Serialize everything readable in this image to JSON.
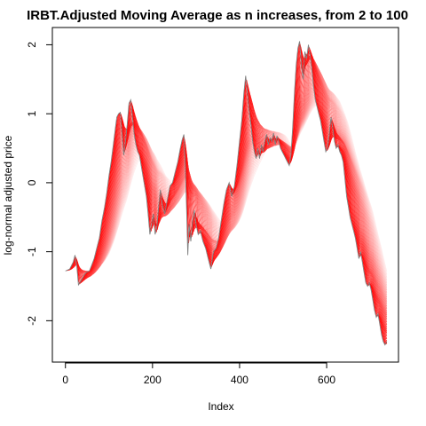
{
  "chart_data": {
    "type": "line",
    "title": "IRBT.Adjusted Moving Average as n increases, from 2 to 100",
    "xlabel": "Index",
    "ylabel": "log-normal adjusted price",
    "xlim": [
      -30,
      765
    ],
    "ylim": [
      -2.6,
      2.25
    ],
    "x_ticks": [
      0,
      200,
      400,
      600
    ],
    "y_ticks": [
      -2,
      -1,
      0,
      1,
      2
    ],
    "grid": false,
    "legend": "none",
    "ma_window_min": 2,
    "ma_window_max": 100,
    "series": [
      {
        "role": "price",
        "color": "#808080",
        "points": [
          [
            0,
            -1.28
          ],
          [
            10,
            -1.25
          ],
          [
            18,
            -1.15
          ],
          [
            22,
            -1.05
          ],
          [
            26,
            -1.2
          ],
          [
            30,
            -1.48
          ],
          [
            36,
            -1.42
          ],
          [
            42,
            -1.35
          ],
          [
            48,
            -1.3
          ],
          [
            55,
            -1.28
          ],
          [
            60,
            -1.2
          ],
          [
            66,
            -1.1
          ],
          [
            72,
            -0.95
          ],
          [
            78,
            -0.8
          ],
          [
            84,
            -0.55
          ],
          [
            90,
            -0.35
          ],
          [
            95,
            -0.15
          ],
          [
            100,
            0.1
          ],
          [
            105,
            0.3
          ],
          [
            110,
            0.55
          ],
          [
            115,
            0.8
          ],
          [
            118,
            0.95
          ],
          [
            122,
            1.0
          ],
          [
            126,
            1.02
          ],
          [
            130,
            0.7
          ],
          [
            134,
            0.4
          ],
          [
            138,
            0.6
          ],
          [
            142,
            0.85
          ],
          [
            146,
            1.15
          ],
          [
            150,
            1.2
          ],
          [
            154,
            0.95
          ],
          [
            158,
            0.7
          ],
          [
            162,
            0.55
          ],
          [
            166,
            0.45
          ],
          [
            170,
            0.4
          ],
          [
            174,
            0.25
          ],
          [
            178,
            0.1
          ],
          [
            182,
            -0.05
          ],
          [
            186,
            -0.2
          ],
          [
            190,
            -0.45
          ],
          [
            194,
            -0.75
          ],
          [
            198,
            -0.6
          ],
          [
            202,
            -0.45
          ],
          [
            206,
            -0.75
          ],
          [
            210,
            -0.65
          ],
          [
            214,
            -0.35
          ],
          [
            218,
            -0.1
          ],
          [
            222,
            -0.3
          ],
          [
            228,
            -0.45
          ],
          [
            234,
            -0.25
          ],
          [
            240,
            -0.05
          ],
          [
            246,
            0.0
          ],
          [
            252,
            0.15
          ],
          [
            258,
            0.3
          ],
          [
            264,
            0.5
          ],
          [
            268,
            0.62
          ],
          [
            272,
            0.7
          ],
          [
            275,
            0.3
          ],
          [
            278,
            -0.3
          ],
          [
            281,
            -1.05
          ],
          [
            284,
            -0.6
          ],
          [
            288,
            -0.85
          ],
          [
            292,
            -0.55
          ],
          [
            296,
            -0.4
          ],
          [
            300,
            -0.6
          ],
          [
            305,
            -0.75
          ],
          [
            310,
            -0.7
          ],
          [
            316,
            -0.85
          ],
          [
            322,
            -0.95
          ],
          [
            328,
            -1.1
          ],
          [
            334,
            -1.25
          ],
          [
            340,
            -1.0
          ],
          [
            346,
            -0.95
          ],
          [
            352,
            -0.8
          ],
          [
            358,
            -0.55
          ],
          [
            364,
            -0.3
          ],
          [
            370,
            -0.1
          ],
          [
            376,
            0.0
          ],
          [
            382,
            -0.2
          ],
          [
            388,
            -0.05
          ],
          [
            394,
            0.25
          ],
          [
            400,
            0.6
          ],
          [
            405,
            0.9
          ],
          [
            410,
            1.3
          ],
          [
            414,
            1.55
          ],
          [
            418,
            1.3
          ],
          [
            422,
            1.05
          ],
          [
            426,
            0.85
          ],
          [
            430,
            0.6
          ],
          [
            434,
            0.45
          ],
          [
            438,
            0.35
          ],
          [
            442,
            0.5
          ],
          [
            446,
            0.35
          ],
          [
            450,
            0.55
          ],
          [
            454,
            0.45
          ],
          [
            458,
            0.6
          ],
          [
            462,
            0.7
          ],
          [
            466,
            0.55
          ],
          [
            470,
            0.65
          ],
          [
            474,
            0.6
          ],
          [
            478,
            0.72
          ],
          [
            482,
            0.55
          ],
          [
            486,
            0.68
          ],
          [
            490,
            0.6
          ],
          [
            494,
            0.5
          ],
          [
            498,
            0.45
          ],
          [
            502,
            0.4
          ],
          [
            506,
            0.35
          ],
          [
            510,
            0.3
          ],
          [
            514,
            0.25
          ],
          [
            518,
            0.4
          ],
          [
            522,
            0.8
          ],
          [
            526,
            1.3
          ],
          [
            530,
            1.7
          ],
          [
            534,
            1.95
          ],
          [
            538,
            2.05
          ],
          [
            542,
            1.7
          ],
          [
            546,
            1.5
          ],
          [
            550,
            1.9
          ],
          [
            554,
            1.8
          ],
          [
            558,
            2.0
          ],
          [
            562,
            1.85
          ],
          [
            566,
            1.65
          ],
          [
            570,
            1.4
          ],
          [
            574,
            1.2
          ],
          [
            578,
            1.1
          ],
          [
            582,
            1.0
          ],
          [
            586,
            0.9
          ],
          [
            590,
            0.75
          ],
          [
            594,
            0.6
          ],
          [
            598,
            0.45
          ],
          [
            602,
            0.5
          ],
          [
            606,
            0.7
          ],
          [
            610,
            0.95
          ],
          [
            614,
            0.8
          ],
          [
            618,
            0.6
          ],
          [
            622,
            0.5
          ],
          [
            626,
            0.55
          ],
          [
            630,
            0.45
          ],
          [
            634,
            0.4
          ],
          [
            638,
            0.3
          ],
          [
            642,
            0.05
          ],
          [
            646,
            -0.2
          ],
          [
            650,
            -0.35
          ],
          [
            654,
            -0.5
          ],
          [
            658,
            -0.6
          ],
          [
            662,
            -0.7
          ],
          [
            666,
            -0.8
          ],
          [
            670,
            -0.95
          ],
          [
            674,
            -1.1
          ],
          [
            678,
            -1.0
          ],
          [
            682,
            -1.15
          ],
          [
            686,
            -1.3
          ],
          [
            690,
            -1.45
          ],
          [
            694,
            -1.5
          ],
          [
            698,
            -1.45
          ],
          [
            702,
            -1.55
          ],
          [
            706,
            -1.7
          ],
          [
            710,
            -1.85
          ],
          [
            714,
            -1.95
          ],
          [
            718,
            -1.9
          ],
          [
            722,
            -2.05
          ],
          [
            726,
            -2.2
          ],
          [
            730,
            -2.3
          ],
          [
            734,
            -2.35
          ],
          [
            738,
            -2.3
          ]
        ]
      }
    ]
  }
}
